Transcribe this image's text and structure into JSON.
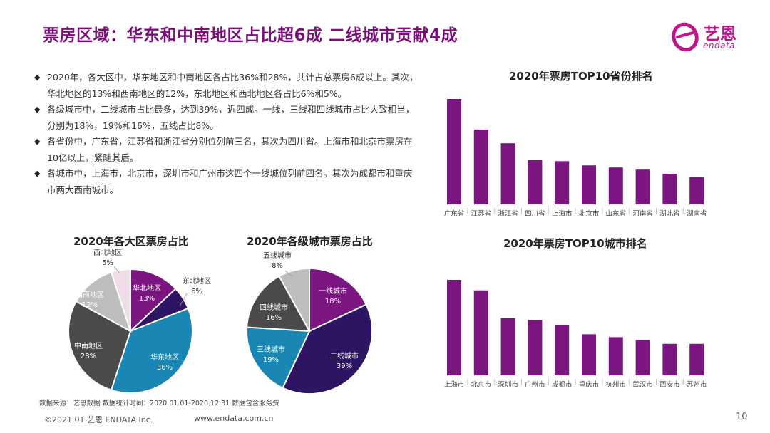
{
  "header": {
    "title": "票房区域：华东和中南地区占比超6成 二线城市贡献4成",
    "logo_cn": "艺恩",
    "logo_en": "endata"
  },
  "bullets": [
    "2020年，各大区中，华东地区和中南地区各占比36%和28%，共计占总票房6成以上。其次，华北地区的13%和西南地区的12%，东北地区和西北地区各占比6%和5%。",
    "各级城市中，二线城市占比最多，达到39%，近四成。一线，三线和四线城市占比大致相当，分别为18%，19%和16%，五线占比8%。",
    "各省份中，广东省，江苏省和浙江省分别位列前三名，其次为四川省。上海市和北京市票房在10亿以上，紧随其后。",
    "各城市中，上海市，北京市，深圳市和广州市这四个一线城位列前四名。其次为成都市和重庆市两大西南城市。"
  ],
  "chart_data": [
    {
      "type": "pie",
      "title": "2020年各大区票房占比",
      "labels": [
        "华北地区",
        "东北地区",
        "华东地区",
        "中南地区",
        "西南地区",
        "西北地区"
      ],
      "values": [
        13,
        6,
        36,
        28,
        12,
        5
      ],
      "value_labels": [
        "13%",
        "6%",
        "36%",
        "28%",
        "12%",
        "5%"
      ],
      "colors": [
        "#7b1680",
        "#2d1563",
        "#1a86b4",
        "#4a4a4a",
        "#bdbdbd",
        "#f0dce8"
      ]
    },
    {
      "type": "pie",
      "title": "2020年各级城市票房占比",
      "labels": [
        "一线城市",
        "二线城市",
        "三线城市",
        "四线城市",
        "五线城市"
      ],
      "values": [
        18,
        39,
        19,
        16,
        8
      ],
      "value_labels": [
        "18%",
        "39%",
        "19%",
        "16%",
        "8%"
      ],
      "colors": [
        "#7b1680",
        "#2d1563",
        "#1a86b4",
        "#4a4a4a",
        "#bdbdbd"
      ]
    },
    {
      "type": "bar",
      "title": "2020年票房TOP10省份排名",
      "categories": [
        "广东省",
        "江苏省",
        "浙江省",
        "四川省",
        "上海市",
        "北京市",
        "山东省",
        "河南省",
        "湖北省",
        "湖南省"
      ],
      "values": [
        100,
        71,
        58,
        42,
        41,
        37,
        35,
        33,
        29,
        26
      ],
      "ylim": [
        0,
        100
      ],
      "color": "#7b1680"
    },
    {
      "type": "bar",
      "title": "2020年票房TOP10城市排名",
      "categories": [
        "上海市",
        "北京市",
        "深圳市",
        "广州市",
        "成都市",
        "重庆市",
        "杭州市",
        "武汉市",
        "西安市",
        "苏州市"
      ],
      "values": [
        100,
        89,
        60,
        58,
        53,
        43,
        40,
        37,
        33,
        33
      ],
      "ylim": [
        0,
        100
      ],
      "color": "#7b1680"
    }
  ],
  "source_note": "数据来源：艺恩数据   数据统计时间：2020.01.01-2020.12.31 数据包含服务费",
  "footer": {
    "copyright": "©2021.01 艺恩 ENDATA Inc.",
    "url": "www.endata.com.cn",
    "page": "10"
  }
}
